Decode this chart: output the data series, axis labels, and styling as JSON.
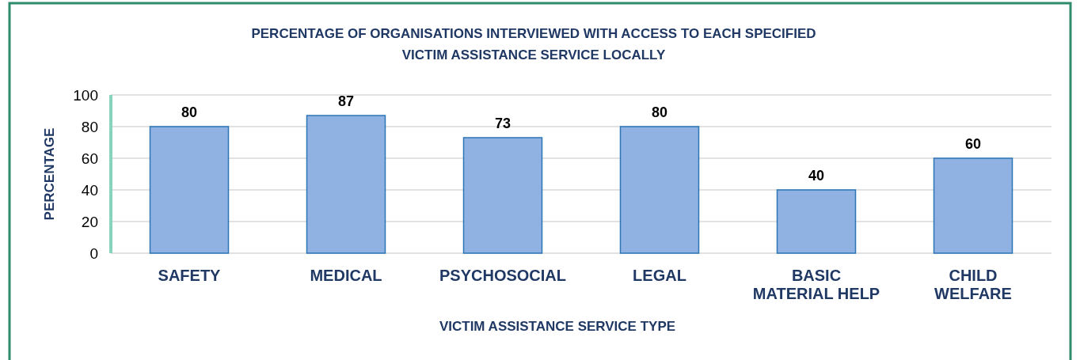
{
  "chart_data": {
    "type": "bar",
    "title": "PERCENTAGE OF ORGANISATIONS INTERVIEWED WITH ACCESS TO EACH SPECIFIED\nVICTIM ASSISTANCE SERVICE LOCALLY",
    "xlabel": "VICTIM ASSISTANCE SERVICE TYPE",
    "ylabel": "PERCENTAGE",
    "categories": [
      "SAFETY",
      "MEDICAL",
      "PSYCHOSOCIAL",
      "LEGAL",
      "BASIC\nMATERIAL HELP",
      "CHILD\nWELFARE"
    ],
    "values": [
      80,
      87,
      73,
      80,
      40,
      60
    ],
    "color": "#8fb2e2",
    "ylim": [
      0,
      100
    ],
    "yticks": [
      0,
      20,
      40,
      60,
      80,
      100
    ],
    "grid": "y",
    "data_labels": true
  }
}
